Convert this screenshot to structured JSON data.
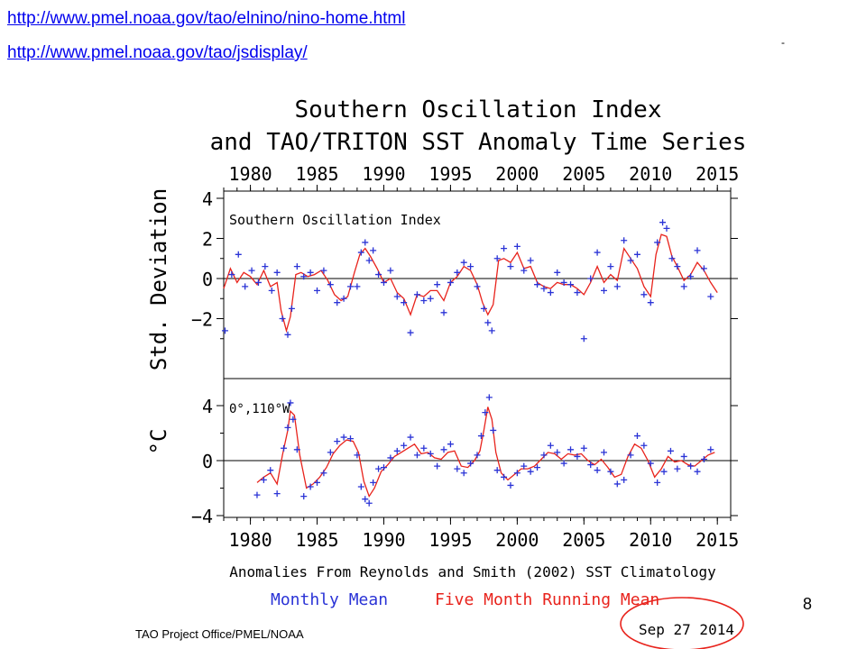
{
  "links": [
    "http://www.pmel.noaa.gov/tao/elnino/nino-home.html",
    "http://www.pmel.noaa.gov/tao/jsdisplay/"
  ],
  "dash_mark": "-",
  "page_number": "8",
  "colors": {
    "link": "#0000ee",
    "monthly": "#2a33d6",
    "running": "#e8231c",
    "circle": "#e8231c"
  },
  "chart_data": [
    {
      "type": "scatter",
      "title": "Southern Oscillation Index",
      "title2": "and TAO/TRITON SST Anomaly Time Series",
      "ylabel": "Std. Deviation",
      "ylim": [
        -4.5,
        4.5
      ],
      "xlim": [
        1978,
        2016
      ],
      "top_ticks": [
        "1980",
        "1985",
        "1990",
        "1995",
        "2000",
        "2005",
        "2010",
        "2015"
      ],
      "y_ticks": [
        "4",
        "2",
        "0",
        "−2"
      ],
      "inner_label": "Southern Oscillation Index",
      "series": [
        {
          "name": "Monthly Mean",
          "style": "plus",
          "x": [
            1978.1,
            1978.6,
            1979.1,
            1979.6,
            1980.1,
            1980.6,
            1981.1,
            1981.6,
            1982.0,
            1982.4,
            1982.8,
            1983.1,
            1983.5,
            1984.0,
            1984.5,
            1985.0,
            1985.5,
            1986.0,
            1986.5,
            1987.0,
            1987.5,
            1988.0,
            1988.3,
            1988.6,
            1988.9,
            1989.2,
            1989.6,
            1990.0,
            1990.5,
            1991.0,
            1991.5,
            1992.0,
            1992.5,
            1993.0,
            1993.5,
            1994.0,
            1994.5,
            1995.0,
            1995.5,
            1996.0,
            1996.5,
            1997.0,
            1997.5,
            1997.8,
            1998.1,
            1998.5,
            1999.0,
            1999.5,
            2000.0,
            2000.5,
            2001.0,
            2001.5,
            2002.0,
            2002.5,
            2003.0,
            2003.5,
            2004.0,
            2004.5,
            2005.0,
            2005.5,
            2006.0,
            2006.5,
            2007.0,
            2007.5,
            2008.0,
            2008.5,
            2009.0,
            2009.5,
            2010.0,
            2010.5,
            2010.9,
            2011.2,
            2011.6,
            2012.0,
            2012.5,
            2013.0,
            2013.5,
            2014.0,
            2014.5
          ],
          "y": [
            -2.6,
            0.2,
            1.2,
            -0.4,
            0.4,
            -0.2,
            0.6,
            -0.6,
            0.3,
            -2.0,
            -2.8,
            -1.5,
            0.6,
            0.1,
            0.3,
            -0.6,
            0.4,
            -0.3,
            -1.2,
            -1.0,
            -0.4,
            -0.4,
            1.3,
            1.8,
            0.9,
            1.4,
            0.2,
            -0.2,
            0.4,
            -0.9,
            -1.2,
            -2.7,
            -0.8,
            -1.1,
            -1.0,
            -0.3,
            -1.7,
            -0.2,
            0.3,
            0.8,
            0.6,
            -0.4,
            -1.5,
            -2.2,
            -2.6,
            1.0,
            1.5,
            0.6,
            1.6,
            0.4,
            0.9,
            -0.3,
            -0.5,
            -0.7,
            0.3,
            -0.2,
            -0.3,
            -0.7,
            -3.0,
            0.0,
            1.3,
            -0.6,
            0.6,
            -0.4,
            1.9,
            0.9,
            1.2,
            -0.8,
            -1.2,
            1.8,
            2.8,
            2.5,
            1.0,
            0.6,
            -0.4,
            0.1,
            1.4,
            0.5,
            -0.9
          ]
        },
        {
          "name": "Five Month Running Mean",
          "style": "line",
          "x": [
            1978.0,
            1978.5,
            1979.0,
            1979.5,
            1980.0,
            1980.5,
            1981.0,
            1981.5,
            1982.0,
            1982.3,
            1982.7,
            1983.0,
            1983.4,
            1983.8,
            1984.3,
            1984.8,
            1985.3,
            1985.8,
            1986.3,
            1986.8,
            1987.3,
            1987.8,
            1988.2,
            1988.6,
            1989.0,
            1989.5,
            1990.0,
            1990.5,
            1991.0,
            1991.5,
            1992.0,
            1992.5,
            1993.0,
            1993.5,
            1994.0,
            1994.5,
            1995.0,
            1995.5,
            1996.0,
            1996.5,
            1997.0,
            1997.4,
            1997.8,
            1998.2,
            1998.6,
            1999.0,
            1999.5,
            2000.0,
            2000.5,
            2001.0,
            2001.5,
            2002.0,
            2002.5,
            2003.0,
            2003.5,
            2004.0,
            2004.5,
            2005.0,
            2005.5,
            2006.0,
            2006.5,
            2007.0,
            2007.5,
            2008.0,
            2008.5,
            2009.0,
            2009.5,
            2010.0,
            2010.4,
            2010.8,
            2011.2,
            2011.6,
            2012.0,
            2012.5,
            2013.0,
            2013.5,
            2014.0,
            2014.5,
            2015.0
          ],
          "y": [
            -0.5,
            0.5,
            -0.2,
            0.3,
            0.1,
            -0.3,
            0.4,
            -0.4,
            -0.2,
            -1.6,
            -2.6,
            -1.9,
            0.2,
            0.3,
            0.1,
            0.2,
            0.4,
            -0.1,
            -0.8,
            -1.1,
            -0.9,
            0.3,
            1.2,
            1.5,
            1.1,
            0.5,
            -0.2,
            0.0,
            -0.7,
            -1.0,
            -1.8,
            -0.8,
            -0.9,
            -0.6,
            -0.6,
            -1.1,
            -0.2,
            0.1,
            0.6,
            0.4,
            -0.3,
            -1.2,
            -1.8,
            -1.3,
            0.9,
            1.0,
            0.8,
            1.3,
            0.5,
            0.6,
            -0.2,
            -0.4,
            -0.5,
            -0.2,
            -0.3,
            -0.3,
            -0.5,
            -0.8,
            -0.2,
            0.6,
            -0.2,
            0.2,
            -0.1,
            1.5,
            1.0,
            0.5,
            -0.4,
            -0.9,
            1.2,
            2.2,
            2.1,
            1.1,
            0.6,
            -0.1,
            0.2,
            0.8,
            0.4,
            -0.2,
            -0.7
          ]
        }
      ]
    },
    {
      "type": "scatter",
      "ylabel": "°C",
      "ylim": [
        -4,
        5.2
      ],
      "xlim": [
        1978,
        2016
      ],
      "inner_label": "0°,110°W",
      "bottom_ticks": [
        "1980",
        "1985",
        "1990",
        "1995",
        "2000",
        "2005",
        "2010",
        "2015"
      ],
      "y_ticks": [
        "4",
        "0",
        "−4"
      ],
      "xlabel": "Anomalies From Reynolds and Smith (2002) SST Climatology",
      "series": [
        {
          "name": "Monthly Mean",
          "style": "plus",
          "x": [
            1980.5,
            1981.0,
            1981.5,
            1982.0,
            1982.5,
            1982.8,
            1983.0,
            1983.2,
            1983.5,
            1984.0,
            1984.5,
            1985.0,
            1985.5,
            1986.0,
            1986.5,
            1987.0,
            1987.5,
            1988.0,
            1988.3,
            1988.6,
            1988.9,
            1989.2,
            1989.6,
            1990.0,
            1990.5,
            1991.0,
            1991.5,
            1992.0,
            1992.5,
            1993.0,
            1993.5,
            1994.0,
            1994.5,
            1995.0,
            1995.5,
            1996.0,
            1996.5,
            1997.0,
            1997.3,
            1997.6,
            1997.9,
            1998.2,
            1998.5,
            1999.0,
            1999.5,
            2000.0,
            2000.5,
            2001.0,
            2001.5,
            2002.0,
            2002.5,
            2003.0,
            2003.5,
            2004.0,
            2004.5,
            2005.0,
            2005.5,
            2006.0,
            2006.5,
            2007.0,
            2007.5,
            2008.0,
            2008.5,
            2009.0,
            2009.5,
            2010.0,
            2010.5,
            2011.0,
            2011.5,
            2012.0,
            2012.5,
            2013.0,
            2013.5,
            2014.0,
            2014.5
          ],
          "y": [
            -2.5,
            -1.4,
            -0.7,
            -2.4,
            0.9,
            2.4,
            4.2,
            3.0,
            0.8,
            -2.6,
            -1.9,
            -1.6,
            -0.9,
            0.6,
            1.4,
            1.7,
            1.6,
            0.4,
            -1.9,
            -2.8,
            -3.1,
            -1.6,
            -0.6,
            -0.5,
            0.2,
            0.7,
            1.1,
            1.7,
            0.4,
            0.9,
            0.5,
            -0.4,
            0.8,
            1.2,
            -0.6,
            -0.9,
            -0.2,
            0.4,
            1.8,
            3.5,
            4.6,
            2.2,
            -0.7,
            -1.2,
            -1.8,
            -0.9,
            -0.4,
            -0.8,
            -0.5,
            0.4,
            1.1,
            0.6,
            -0.2,
            0.8,
            0.3,
            0.9,
            -0.3,
            -0.7,
            0.6,
            -0.8,
            -1.7,
            -1.4,
            0.4,
            1.8,
            1.1,
            -0.2,
            -1.6,
            -0.8,
            0.7,
            -0.6,
            0.3,
            -0.4,
            -0.8,
            0.1,
            0.8
          ]
        },
        {
          "name": "Five Month Running Mean",
          "style": "line",
          "x": [
            1980.5,
            1981.0,
            1981.5,
            1982.0,
            1982.4,
            1982.8,
            1983.0,
            1983.3,
            1983.7,
            1984.2,
            1984.7,
            1985.2,
            1985.7,
            1986.2,
            1986.7,
            1987.2,
            1987.7,
            1988.1,
            1988.5,
            1988.9,
            1989.3,
            1989.8,
            1990.3,
            1990.8,
            1991.3,
            1991.8,
            1992.3,
            1992.8,
            1993.3,
            1993.8,
            1994.3,
            1994.8,
            1995.3,
            1995.8,
            1996.3,
            1996.8,
            1997.2,
            1997.5,
            1997.8,
            1998.1,
            1998.4,
            1998.8,
            1999.3,
            1999.8,
            2000.3,
            2000.8,
            2001.3,
            2001.8,
            2002.3,
            2002.8,
            2003.3,
            2003.8,
            2004.3,
            2004.8,
            2005.3,
            2005.8,
            2006.3,
            2006.8,
            2007.3,
            2007.8,
            2008.3,
            2008.8,
            2009.3,
            2009.8,
            2010.3,
            2010.8,
            2011.3,
            2011.8,
            2012.3,
            2012.8,
            2013.3,
            2013.8,
            2014.3,
            2014.8
          ],
          "y": [
            -1.6,
            -1.2,
            -0.9,
            -1.7,
            0.4,
            2.2,
            3.6,
            3.3,
            0.4,
            -2.0,
            -1.7,
            -1.2,
            -0.5,
            0.5,
            1.1,
            1.5,
            1.4,
            0.6,
            -1.5,
            -2.6,
            -2.0,
            -0.8,
            -0.3,
            0.3,
            0.6,
            0.9,
            1.2,
            0.5,
            0.6,
            0.2,
            0.1,
            0.6,
            0.7,
            -0.4,
            -0.5,
            0.0,
            0.7,
            2.2,
            3.9,
            3.0,
            0.6,
            -0.9,
            -1.4,
            -1.0,
            -0.6,
            -0.6,
            -0.4,
            0.1,
            0.6,
            0.5,
            0.1,
            0.5,
            0.4,
            0.5,
            0.0,
            -0.3,
            0.1,
            -0.5,
            -1.2,
            -1.0,
            0.3,
            1.2,
            0.9,
            0.0,
            -1.2,
            -0.6,
            0.3,
            -0.1,
            0.0,
            -0.3,
            -0.4,
            0.0,
            0.4,
            0.6
          ]
        }
      ]
    }
  ],
  "legend": {
    "monthly": "Monthly Mean",
    "running": "Five Month Running Mean"
  },
  "footer": {
    "office": "TAO Project Office/PMEL/NOAA",
    "date": "Sep 27 2014"
  }
}
